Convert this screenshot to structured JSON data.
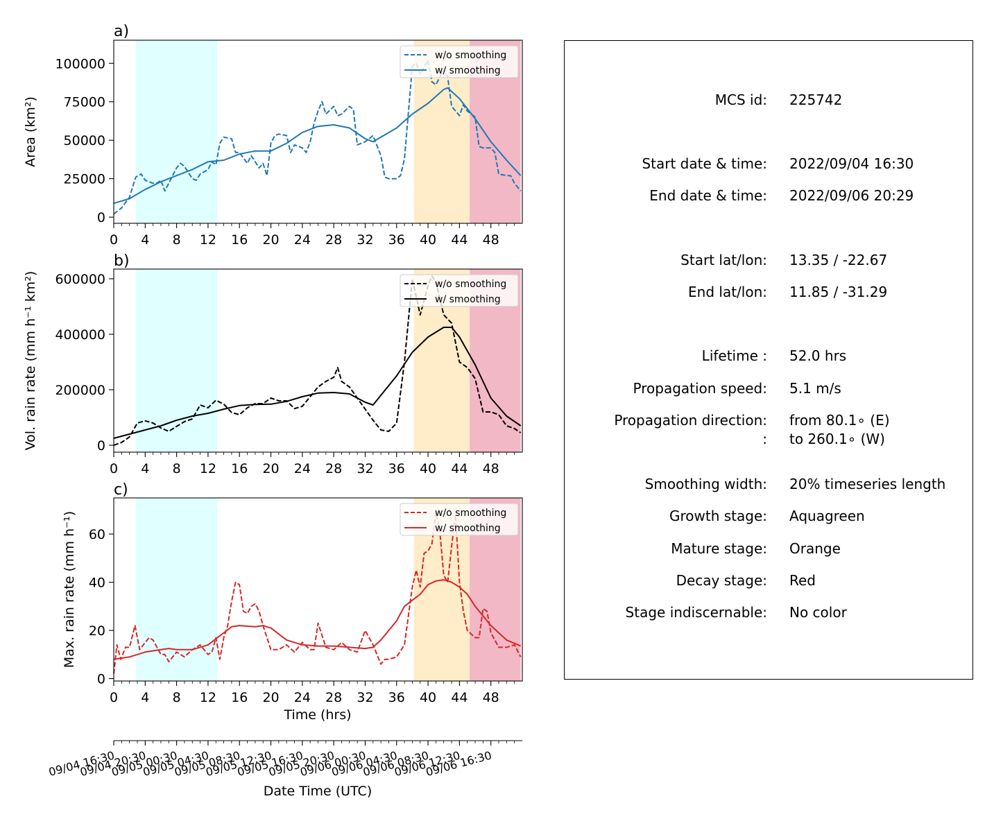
{
  "colors": {
    "growth_stage": "#e0ffff",
    "mature_stage": "#ffecc8",
    "decay_stage": "#f2b8c6",
    "area_series": "#1f77b4",
    "volrain_series": "#000000",
    "maxrain_series": "#d62728"
  },
  "stages": {
    "growth": [
      2.8,
      13.2
    ],
    "mature": [
      38.2,
      45.3
    ],
    "decay": [
      45.3,
      51.8
    ]
  },
  "chart_data": [
    {
      "panel": "a)",
      "type": "line",
      "ylabel": "Area  (km²)",
      "xlim": [
        0,
        52
      ],
      "ylim": [
        -4000,
        115000
      ],
      "xticks": [
        "0",
        "4",
        "8",
        "12",
        "16",
        "20",
        "24",
        "28",
        "32",
        "36",
        "40",
        "44",
        "48"
      ],
      "yticks": [
        "0",
        "25000",
        "50000",
        "75000",
        "100000"
      ],
      "legend_position": "top-right",
      "series": [
        {
          "name": "w/o smoothing",
          "style": "dashed",
          "color": "#1f77b4",
          "x": [
            0,
            1,
            2,
            2.8,
            3.5,
            4,
            5,
            5.5,
            6,
            6.5,
            7,
            8,
            8.5,
            9,
            10,
            10.5,
            11,
            12,
            12.5,
            13,
            13.5,
            14,
            15,
            15.5,
            16,
            17,
            17.5,
            18,
            18.5,
            19,
            19.5,
            20,
            20.5,
            21,
            22,
            22.5,
            23,
            24,
            24.5,
            25,
            25.5,
            26,
            26.5,
            27,
            28,
            28.5,
            29,
            30,
            30.5,
            31,
            32,
            33,
            34,
            34.5,
            35,
            36,
            36.5,
            37,
            38,
            38.5,
            39,
            40,
            40.5,
            41,
            42,
            42.5,
            43,
            44,
            44.5,
            45,
            46,
            46.5,
            47,
            48,
            48.5,
            49,
            50,
            50.5,
            51,
            51.8
          ],
          "y": [
            2000,
            6000,
            13000,
            26000,
            28000,
            24000,
            22000,
            22000,
            24000,
            17000,
            22000,
            32000,
            35000,
            33000,
            25000,
            24000,
            28000,
            31000,
            36000,
            34000,
            48000,
            52000,
            51000,
            42000,
            42000,
            35000,
            40000,
            36000,
            32000,
            35000,
            27000,
            48000,
            53000,
            54000,
            53000,
            42000,
            47000,
            45000,
            42000,
            49000,
            61000,
            69000,
            75000,
            67000,
            72000,
            66000,
            67000,
            72000,
            70000,
            47000,
            49000,
            53000,
            40000,
            26000,
            25000,
            25000,
            27000,
            38000,
            98000,
            100000,
            93000,
            102000,
            88000,
            86000,
            96000,
            91000,
            72000,
            66000,
            73000,
            69000,
            65000,
            46000,
            45000,
            45000,
            42000,
            28000,
            27000,
            27000,
            22000,
            17000
          ]
        },
        {
          "name": "w/ smoothing",
          "style": "solid",
          "color": "#1f77b4",
          "x": [
            0,
            2,
            4,
            6,
            8,
            10,
            12,
            14,
            16,
            18,
            20,
            22,
            24,
            26,
            28,
            30,
            32,
            33,
            34,
            36,
            38,
            40,
            42,
            42.5,
            44,
            46,
            48,
            50,
            51.8
          ],
          "y": [
            9000,
            12000,
            18000,
            23000,
            27000,
            31000,
            36000,
            37000,
            41000,
            43000,
            43000,
            48000,
            55000,
            59000,
            60000,
            58000,
            51000,
            49000,
            52000,
            58000,
            67000,
            74000,
            83000,
            84000,
            77000,
            64000,
            49000,
            37000,
            27000
          ]
        }
      ]
    },
    {
      "panel": "b)",
      "type": "line",
      "ylabel": "Vol. rain rate (mm h⁻¹ km²)",
      "xlim": [
        0,
        52
      ],
      "ylim": [
        -25000,
        635000
      ],
      "xticks": [
        "0",
        "4",
        "8",
        "12",
        "16",
        "20",
        "24",
        "28",
        "32",
        "36",
        "40",
        "44",
        "48"
      ],
      "yticks": [
        "0",
        "200000",
        "400000",
        "600000"
      ],
      "legend_position": "top-right",
      "series": [
        {
          "name": "w/o smoothing",
          "style": "dashed",
          "color": "#000000",
          "x": [
            0,
            1,
            2,
            3,
            4,
            5,
            6,
            7,
            8,
            9,
            10,
            11,
            12,
            13,
            14,
            15,
            16,
            17,
            18,
            19,
            20,
            21,
            22,
            23,
            24,
            25,
            26,
            27,
            28,
            28.5,
            29,
            30,
            31,
            32,
            33,
            34,
            35,
            36,
            37,
            38,
            39,
            40,
            40.5,
            41,
            42,
            43,
            44,
            45,
            46,
            47,
            48,
            49,
            50,
            51,
            51.8
          ],
          "y": [
            0,
            10000,
            30000,
            80000,
            88000,
            80000,
            62000,
            50000,
            68000,
            85000,
            95000,
            145000,
            135000,
            162000,
            148000,
            118000,
            110000,
            135000,
            150000,
            150000,
            170000,
            160000,
            160000,
            132000,
            140000,
            175000,
            210000,
            230000,
            245000,
            280000,
            230000,
            210000,
            170000,
            130000,
            90000,
            55000,
            50000,
            80000,
            300000,
            600000,
            470000,
            575000,
            610000,
            590000,
            470000,
            440000,
            300000,
            280000,
            240000,
            120000,
            120000,
            110000,
            70000,
            60000,
            45000
          ]
        },
        {
          "name": "w/ smoothing",
          "style": "solid",
          "color": "#000000",
          "x": [
            0,
            2,
            4,
            6,
            8,
            10,
            12,
            14,
            16,
            18,
            20,
            22,
            24,
            26,
            28,
            30,
            32,
            33,
            34,
            36,
            38,
            40,
            42,
            43,
            44,
            46,
            48,
            50,
            51.8
          ],
          "y": [
            25000,
            40000,
            55000,
            70000,
            90000,
            105000,
            115000,
            130000,
            143000,
            147000,
            148000,
            158000,
            175000,
            188000,
            190000,
            185000,
            155000,
            145000,
            180000,
            250000,
            335000,
            390000,
            425000,
            425000,
            390000,
            290000,
            170000,
            105000,
            70000
          ]
        }
      ]
    },
    {
      "panel": "c)",
      "type": "line",
      "ylabel": "Max. rain rate  (mm h⁻¹)",
      "xlabel": "Time (hrs)",
      "xlim": [
        0,
        52
      ],
      "ylim": [
        -1,
        75
      ],
      "xticks": [
        "0",
        "4",
        "8",
        "12",
        "16",
        "20",
        "24",
        "28",
        "32",
        "36",
        "40",
        "44",
        "48"
      ],
      "yticks": [
        "0",
        "20",
        "40",
        "60"
      ],
      "legend_position": "top-right",
      "series": [
        {
          "name": "w/o smoothing",
          "style": "dashed",
          "color": "#d62728",
          "x": [
            0,
            0.4,
            0.9,
            1.5,
            2,
            2.7,
            3.3,
            4,
            4.5,
            5,
            6,
            6.5,
            7,
            8,
            9,
            10,
            11,
            12,
            12.5,
            13,
            13.5,
            14,
            14.5,
            15,
            15.5,
            16,
            16.5,
            17,
            17.5,
            18,
            18.5,
            19,
            20,
            21,
            22,
            23,
            24,
            25,
            25.5,
            26,
            27,
            28,
            29,
            30,
            31,
            32,
            33,
            34,
            34.5,
            35,
            36,
            37,
            38,
            38.5,
            39,
            39.5,
            40,
            40.5,
            41,
            41.5,
            42,
            42.5,
            43,
            43.5,
            44,
            44.5,
            45,
            46,
            46.5,
            47,
            47.5,
            48,
            49,
            50,
            51,
            51.8
          ],
          "y": [
            2,
            14,
            8,
            13,
            13,
            22,
            12,
            15,
            17,
            16,
            10,
            10,
            7,
            11,
            9,
            12,
            14,
            10,
            11,
            17,
            8,
            17,
            22,
            32,
            40,
            39,
            28,
            27,
            30,
            31,
            28,
            22,
            12,
            12,
            14,
            11,
            15,
            12,
            12,
            23,
            13,
            12,
            15,
            12,
            11,
            20,
            14,
            6,
            8,
            8,
            9,
            14,
            38,
            45,
            38,
            52,
            53,
            56,
            69,
            61,
            43,
            40,
            55,
            68,
            40,
            28,
            20,
            17,
            17,
            29,
            28,
            19,
            13,
            13,
            14,
            9
          ]
        },
        {
          "name": "w/ smoothing",
          "style": "solid",
          "color": "#d62728",
          "x": [
            0,
            2,
            4,
            6,
            7,
            8,
            10,
            12,
            14,
            15,
            16,
            18,
            19,
            20,
            22,
            24,
            26,
            28,
            30,
            32,
            33,
            34,
            36,
            37,
            38,
            39,
            40,
            41,
            42,
            43,
            44,
            45,
            46,
            48,
            50,
            51.8
          ],
          "y": [
            8,
            9,
            11,
            12,
            12.5,
            12,
            12,
            14,
            19,
            21.5,
            22,
            21.5,
            22,
            21,
            16,
            14,
            13.5,
            13.5,
            13,
            12.5,
            13,
            16,
            24,
            30,
            32.5,
            35,
            39,
            40.5,
            41,
            40,
            38,
            35,
            30,
            22,
            16,
            13.5
          ]
        }
      ]
    }
  ],
  "date_axis": {
    "xlabel": "Date Time (UTC)",
    "ticks": [
      {
        "x": 0,
        "label": "09/04 16:30"
      },
      {
        "x": 4,
        "label": "09/04 20:30"
      },
      {
        "x": 8,
        "label": "09/05 00:30"
      },
      {
        "x": 12,
        "label": "09/05 04:30"
      },
      {
        "x": 16,
        "label": "09/05 08:30"
      },
      {
        "x": 20,
        "label": "09/05 12:30"
      },
      {
        "x": 24,
        "label": "09/05 16:30"
      },
      {
        "x": 28,
        "label": "09/05 20:30"
      },
      {
        "x": 32,
        "label": "09/06 00:30"
      },
      {
        "x": 36,
        "label": "09/06 04:30"
      },
      {
        "x": 40,
        "label": "09/06 08:30"
      },
      {
        "x": 44,
        "label": "09/06 12:30"
      },
      {
        "x": 48,
        "label": "09/06 16:30"
      }
    ]
  },
  "info": {
    "rows": [
      {
        "label": "MCS id:",
        "value": "225742"
      },
      {
        "label": "Start date & time:",
        "value": "2022/09/04 16:30"
      },
      {
        "label": "End date & time:",
        "value": "2022/09/06 20:29"
      },
      {
        "label": "Start lat/lon:",
        "value": "13.35 / -22.67"
      },
      {
        "label": "End lat/lon:",
        "value": "11.85 / -31.29"
      },
      {
        "label": "Lifetime :",
        "value": "52.0 hrs"
      },
      {
        "label": "Propagation speed:",
        "value": "5.1 m/s"
      },
      {
        "label": "Propagation direction:",
        "value": "from  80.1∘ (E)"
      },
      {
        "label": ":",
        "value": "to   260.1∘ (W)"
      },
      {
        "label": "Smoothing width:",
        "value": "20% timeseries length"
      },
      {
        "label": "Growth stage:",
        "value": "Aquagreen"
      },
      {
        "label": "Mature stage:",
        "value": "Orange"
      },
      {
        "label": "Decay stage:",
        "value": "Red"
      },
      {
        "label": "Stage indiscernable:",
        "value": "No color"
      }
    ]
  }
}
